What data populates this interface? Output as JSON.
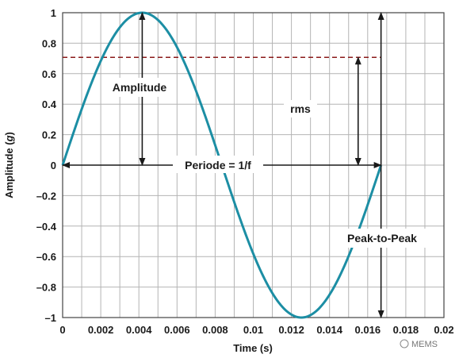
{
  "chart_data": {
    "type": "line",
    "title": "",
    "xlabel": "Time (s)",
    "ylabel_prefix": "Amplitude (",
    "ylabel_var": "g",
    "ylabel_suffix": ")",
    "xlim": [
      0,
      0.02
    ],
    "ylim": [
      -1,
      1
    ],
    "grid": true,
    "x_ticks": [
      "0",
      "0.002",
      "0.004",
      "0.006",
      "0.008",
      "0.01",
      "0.012",
      "0.014",
      "0.016",
      "0.018",
      "0.02"
    ],
    "y_ticks": [
      "1",
      "0.8",
      "0.6",
      "0.4",
      "0.2",
      "0",
      "–0.2",
      "–0.4",
      "–0.6",
      "–0.8",
      "–1"
    ],
    "series": [
      {
        "function": "sine",
        "amplitude": 1,
        "period": 0.0167,
        "x_start": 0,
        "x_end": 0.0167,
        "color": "#1c8ea4"
      }
    ],
    "rms_level": 0.707,
    "rms_color": "#8b1a1a",
    "annotations": {
      "amplitude": "Amplitude",
      "rms": "rms",
      "period": "Periode = 1/f",
      "peak_to_peak": "Peak-to-Peak"
    }
  },
  "watermark": "MEMS"
}
